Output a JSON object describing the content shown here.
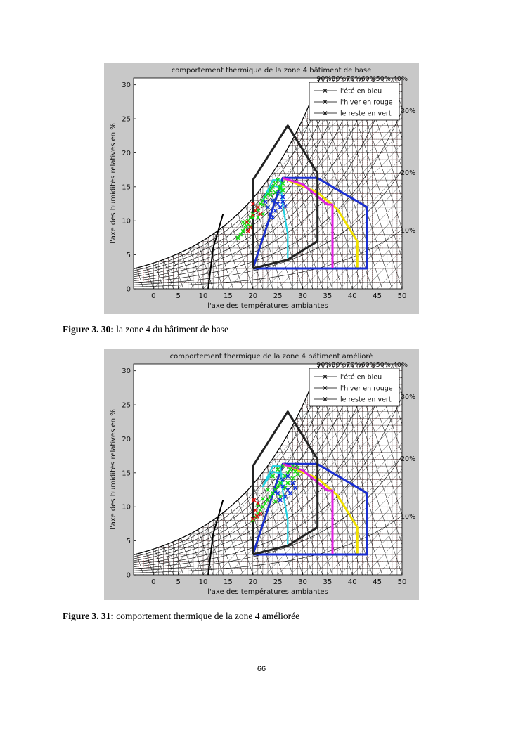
{
  "figures": [
    {
      "caption_label": "Figure 3. 30:",
      "caption_text": " la zone 4 du bâtiment de base",
      "chart_data": {
        "type": "scatter",
        "title": "comportement thermique de la zone 4 bâtiment de base",
        "xlabel": "l'axe des températures ambiantes",
        "ylabel": "l'axe des humidités relatives en %",
        "xlim": [
          -4,
          50
        ],
        "ylim": [
          0,
          31
        ],
        "xticks": [
          0,
          5,
          10,
          15,
          20,
          25,
          30,
          35,
          40,
          45,
          50
        ],
        "yticks": [
          0,
          5,
          10,
          15,
          20,
          25,
          30
        ],
        "grid": true,
        "top_rh_labels": "90%80%70%60%50% 40%",
        "right_rh_labels": [
          "30%",
          "20%",
          "10%"
        ],
        "legend": {
          "position": "top-right",
          "entries": [
            "l'été en bleu",
            "l'hiver en rouge",
            "le reste en vert"
          ]
        },
        "colors": {
          "ete": "#1030e0",
          "hiver": "#e01010",
          "reste": "#10e010",
          "zone_blue": "#1a2fd0",
          "zone_black": "#222222",
          "zone_yellow": "#f0e000",
          "zone_magenta": "#e020e0",
          "zone_cyan": "#20d0e0",
          "background": "#c8c8c8"
        },
        "zones": {
          "black": [
            [
              20,
              3
            ],
            [
              20,
              16
            ],
            [
              27,
              24
            ],
            [
              33,
              17
            ],
            [
              33,
              7
            ],
            [
              27,
              4.3
            ],
            [
              20,
              3
            ]
          ],
          "blue": [
            [
              20,
              3
            ],
            [
              43,
              3
            ],
            [
              43,
              12
            ],
            [
              33,
              16.3
            ],
            [
              26,
              16.3
            ],
            [
              20,
              3
            ]
          ],
          "yellow": [
            [
              20,
              3
            ],
            [
              41,
              3
            ],
            [
              41,
              7
            ],
            [
              37,
              11.7
            ],
            [
              33,
              14.2
            ],
            [
              26,
              16.3
            ],
            [
              20,
              3
            ]
          ],
          "magenta": [
            [
              26,
              16.3
            ],
            [
              30,
              15.4
            ],
            [
              35,
              12.4
            ],
            [
              36,
              12.4
            ],
            [
              36,
              3
            ]
          ],
          "cyan": [
            [
              27,
              4.5
            ],
            [
              27,
              8
            ],
            [
              26,
              12.4
            ],
            [
              25.5,
              16
            ],
            [
              24,
              16
            ],
            [
              22,
              13
            ],
            [
              24,
              15.2
            ],
            [
              26,
              14.8
            ]
          ]
        },
        "series": [
          {
            "name": "le reste en vert",
            "color": "#10e010",
            "points": [
              [
                17,
                7.5
              ],
              [
                17.5,
                8
              ],
              [
                18,
                8.5
              ],
              [
                18.5,
                9
              ],
              [
                19,
                9.5
              ],
              [
                19,
                10
              ],
              [
                19.5,
                10.5
              ],
              [
                20,
                11
              ],
              [
                20.5,
                11.5
              ],
              [
                21,
                12
              ],
              [
                21.5,
                12.5
              ],
              [
                22,
                13
              ],
              [
                22.5,
                13.5
              ],
              [
                23,
                14
              ],
              [
                23.5,
                14.5
              ],
              [
                24,
                15
              ],
              [
                24.5,
                15.5
              ],
              [
                25,
                16
              ],
              [
                25.5,
                15
              ],
              [
                26,
                15.5
              ],
              [
                21,
                10.5
              ],
              [
                22,
                11
              ],
              [
                23,
                12
              ],
              [
                24,
                13
              ],
              [
                25,
                14
              ],
              [
                26,
                14.5
              ],
              [
                18,
                9.8
              ],
              [
                20,
                10.5
              ],
              [
                21,
                11.6
              ],
              [
                22,
                12.4
              ],
              [
                23.5,
                13.8
              ],
              [
                24.5,
                14.2
              ],
              [
                25.5,
                14.8
              ],
              [
                19.5,
                9.2
              ],
              [
                18.3,
                9.6
              ]
            ]
          },
          {
            "name": "l'hiver en rouge",
            "color": "#e01010",
            "points": [
              [
                19.5,
                9
              ],
              [
                20,
                10.8
              ],
              [
                20.5,
                11.5
              ],
              [
                21,
                12
              ],
              [
                19,
                8.5
              ],
              [
                20,
                12.5
              ],
              [
                21.5,
                11
              ],
              [
                18.8,
                9.8
              ]
            ]
          },
          {
            "name": "l'été en bleu",
            "color": "#1030e0",
            "points": [
              [
                23,
                12
              ],
              [
                24,
                13
              ],
              [
                25,
                12.5
              ],
              [
                25.5,
                12
              ],
              [
                26,
                12.8
              ],
              [
                24.5,
                11.5
              ],
              [
                23.5,
                11
              ],
              [
                25,
                14
              ],
              [
                26,
                13.5
              ],
              [
                24,
                10.5
              ],
              [
                26.5,
                12.2
              ],
              [
                22.5,
                12.8
              ]
            ]
          }
        ]
      }
    },
    {
      "caption_label": "Figure 3. 31:",
      "caption_text": " comportement thermique de la zone 4 améliorée",
      "chart_data": {
        "type": "scatter",
        "title": "comportement thermique de la zone 4 bâtiment amélioré",
        "xlabel": "l'axe des températures ambiantes",
        "ylabel": "l'axe des humidités relatives en %",
        "xlim": [
          -4,
          50
        ],
        "ylim": [
          0,
          31
        ],
        "xticks": [
          0,
          5,
          10,
          15,
          20,
          25,
          30,
          35,
          40,
          45,
          50
        ],
        "yticks": [
          0,
          5,
          10,
          15,
          20,
          25,
          30
        ],
        "grid": true,
        "top_rh_labels": "90%80%70%60%50% 40%",
        "right_rh_labels": [
          "30%",
          "20%",
          "10%"
        ],
        "legend": {
          "position": "top-right",
          "entries": [
            "l'été en bleu",
            "l'hiver en rouge",
            "le reste en vert"
          ]
        },
        "colors": {
          "ete": "#1030e0",
          "hiver": "#e01010",
          "reste": "#10e010",
          "zone_blue": "#1a2fd0",
          "zone_black": "#222222",
          "zone_yellow": "#f0e000",
          "zone_magenta": "#e020e0",
          "zone_cyan": "#20d0e0",
          "background": "#c8c8c8"
        },
        "zones": {
          "black": [
            [
              20,
              3
            ],
            [
              20,
              16
            ],
            [
              27,
              24
            ],
            [
              33,
              17
            ],
            [
              33,
              7
            ],
            [
              27,
              4.3
            ],
            [
              20,
              3
            ]
          ],
          "blue": [
            [
              20,
              3
            ],
            [
              43,
              3
            ],
            [
              43,
              12
            ],
            [
              33,
              16.3
            ],
            [
              26,
              16.3
            ],
            [
              20,
              3
            ]
          ],
          "yellow": [
            [
              20,
              3
            ],
            [
              41,
              3
            ],
            [
              41,
              7
            ],
            [
              37,
              11.7
            ],
            [
              33,
              14.2
            ],
            [
              26,
              16.3
            ],
            [
              20,
              3
            ]
          ],
          "magenta": [
            [
              26,
              16.3
            ],
            [
              30,
              15.4
            ],
            [
              35,
              12.4
            ],
            [
              36,
              12.4
            ],
            [
              36,
              3
            ]
          ],
          "cyan": [
            [
              27,
              4.5
            ],
            [
              27,
              8
            ],
            [
              26,
              12.4
            ],
            [
              25.5,
              16
            ],
            [
              24,
              16
            ],
            [
              22,
              13
            ],
            [
              24,
              15.2
            ],
            [
              26,
              14.8
            ]
          ]
        },
        "series": [
          {
            "name": "le reste en vert",
            "color": "#10e010",
            "points": [
              [
                20,
                8
              ],
              [
                20.5,
                8.5
              ],
              [
                21,
                9
              ],
              [
                21.5,
                9.5
              ],
              [
                22,
                10
              ],
              [
                22.5,
                10.5
              ],
              [
                23,
                11
              ],
              [
                23.5,
                11.5
              ],
              [
                24,
                12
              ],
              [
                24.5,
                12.5
              ],
              [
                25,
                13
              ],
              [
                25.5,
                13.5
              ],
              [
                26,
                14
              ],
              [
                26.5,
                14.5
              ],
              [
                27,
                15
              ],
              [
                27.5,
                15.5
              ],
              [
                28,
                16
              ],
              [
                28.5,
                15.2
              ],
              [
                29,
                15.8
              ],
              [
                24,
                14.5
              ],
              [
                25,
                15.5
              ],
              [
                26,
                16
              ],
              [
                23,
                12.5
              ],
              [
                22,
                11.2
              ],
              [
                21,
                10.2
              ],
              [
                27,
                13.5
              ],
              [
                28,
                14.2
              ],
              [
                29,
                14.8
              ],
              [
                25.5,
                11.5
              ],
              [
                24.5,
                10.8
              ],
              [
                26.5,
                12.8
              ]
            ]
          },
          {
            "name": "l'hiver en rouge",
            "color": "#e01010",
            "points": [
              [
                20,
                8.2
              ],
              [
                20.5,
                9.5
              ],
              [
                21,
                10.5
              ],
              [
                20.2,
                11
              ],
              [
                21.5,
                9
              ],
              [
                20.8,
                8.6
              ]
            ]
          },
          {
            "name": "l'été en bleu",
            "color": "#1030e0",
            "points": [
              [
                25,
                12
              ],
              [
                26,
                13
              ],
              [
                27,
                12.5
              ],
              [
                27.5,
                12
              ],
              [
                26.5,
                11.5
              ],
              [
                25.5,
                11
              ],
              [
                28,
                13.5
              ],
              [
                26,
                14
              ],
              [
                27,
                14.5
              ],
              [
                24.5,
                12.2
              ],
              [
                28.5,
                12.8
              ]
            ]
          }
        ]
      }
    }
  ],
  "page_number": "66"
}
